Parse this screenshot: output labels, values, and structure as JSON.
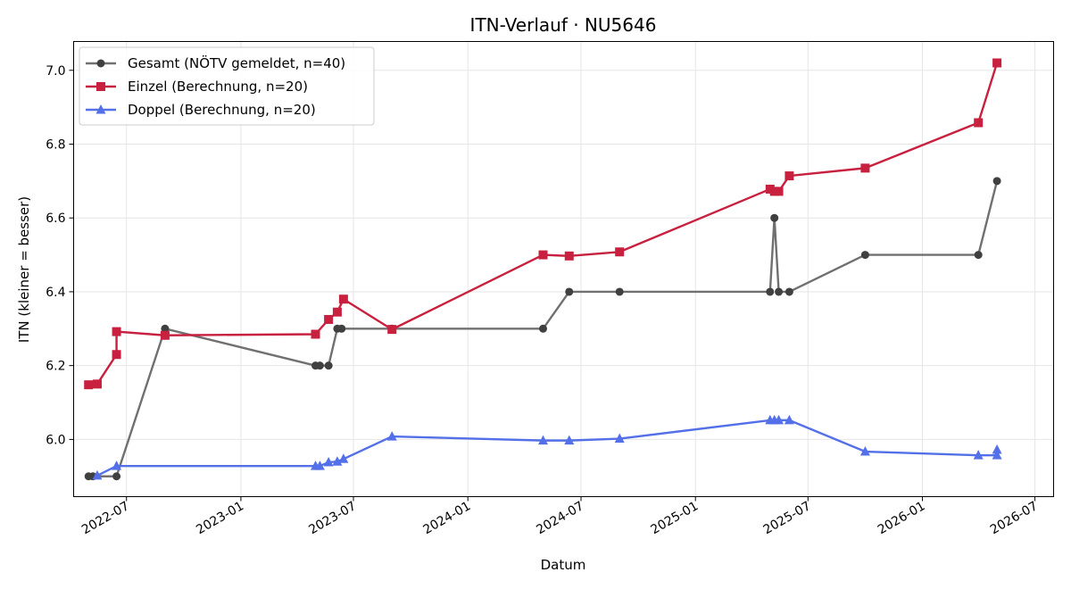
{
  "chart_data": {
    "type": "line",
    "title": "ITN-Verlauf · NU5646",
    "xlabel": "Datum",
    "ylabel": "ITN  (kleiner = besser)",
    "x_ticks": [
      "2022-07",
      "2023-01",
      "2023-07",
      "2024-01",
      "2024-07",
      "2025-01",
      "2025-07",
      "2026-01",
      "2026-07"
    ],
    "y_ticks": [
      "6.0",
      "6.2",
      "6.4",
      "6.6",
      "6.8",
      "7.0"
    ],
    "xlim": [
      "2022-04-07",
      "2026-07-31"
    ],
    "ylim": [
      5.845,
      7.078
    ],
    "grid": true,
    "legend_position": "top-left",
    "series": [
      {
        "name": "Gesamt (NÖTV gemeldet, n=40)",
        "color": "#707070",
        "marker_color": "#404040",
        "marker": "circle",
        "points": [
          [
            "2022-05-01",
            5.9
          ],
          [
            "2022-05-08",
            5.9
          ],
          [
            "2022-06-15",
            5.9
          ],
          [
            "2022-09-01",
            6.3
          ],
          [
            "2023-05-01",
            6.2
          ],
          [
            "2023-05-08",
            6.2
          ],
          [
            "2023-05-22",
            6.2
          ],
          [
            "2023-06-05",
            6.3
          ],
          [
            "2023-06-12",
            6.3
          ],
          [
            "2023-09-01",
            6.3
          ],
          [
            "2024-05-01",
            6.3
          ],
          [
            "2024-06-12",
            6.4
          ],
          [
            "2024-09-01",
            6.4
          ],
          [
            "2025-05-01",
            6.4
          ],
          [
            "2025-05-08",
            6.6
          ],
          [
            "2025-05-15",
            6.4
          ],
          [
            "2025-06-01",
            6.4
          ],
          [
            "2025-10-01",
            6.5
          ],
          [
            "2026-04-01",
            6.5
          ],
          [
            "2026-05-01",
            6.7
          ]
        ]
      },
      {
        "name": "Einzel (Berechnung, n=20)",
        "color": "#c8203f",
        "marker": "square",
        "points": [
          [
            "2022-05-01",
            6.148
          ],
          [
            "2022-05-15",
            6.15
          ],
          [
            "2022-06-15",
            6.23
          ],
          [
            "2022-06-15",
            6.292
          ],
          [
            "2022-09-01",
            6.282
          ],
          [
            "2023-05-01",
            6.285
          ],
          [
            "2023-05-22",
            6.325
          ],
          [
            "2023-06-05",
            6.345
          ],
          [
            "2023-06-15",
            6.38
          ],
          [
            "2023-09-01",
            6.298
          ],
          [
            "2024-05-01",
            6.5
          ],
          [
            "2024-06-12",
            6.497
          ],
          [
            "2024-09-01",
            6.508
          ],
          [
            "2025-05-01",
            6.678
          ],
          [
            "2025-05-08",
            6.672
          ],
          [
            "2025-05-15",
            6.672
          ],
          [
            "2025-06-01",
            6.714
          ],
          [
            "2025-10-01",
            6.735
          ],
          [
            "2026-04-01",
            6.858
          ],
          [
            "2026-05-01",
            7.02
          ]
        ]
      },
      {
        "name": "Doppel (Berechnung, n=20)",
        "color": "#5470e8",
        "marker": "triangle",
        "points": [
          [
            "2022-05-15",
            5.902
          ],
          [
            "2022-06-15",
            5.928
          ],
          [
            "2023-05-01",
            5.928
          ],
          [
            "2023-05-08",
            5.928
          ],
          [
            "2023-05-22",
            5.938
          ],
          [
            "2023-06-05",
            5.94
          ],
          [
            "2023-06-15",
            5.947
          ],
          [
            "2023-09-01",
            6.008
          ],
          [
            "2024-05-01",
            5.997
          ],
          [
            "2024-06-12",
            5.997
          ],
          [
            "2024-09-01",
            6.002
          ],
          [
            "2025-05-01",
            6.052
          ],
          [
            "2025-05-08",
            6.052
          ],
          [
            "2025-05-15",
            6.052
          ],
          [
            "2025-06-01",
            6.052
          ],
          [
            "2025-10-01",
            5.967
          ],
          [
            "2026-04-01",
            5.957
          ],
          [
            "2026-05-01",
            5.957
          ],
          [
            "2026-05-01",
            5.972
          ]
        ]
      }
    ]
  }
}
